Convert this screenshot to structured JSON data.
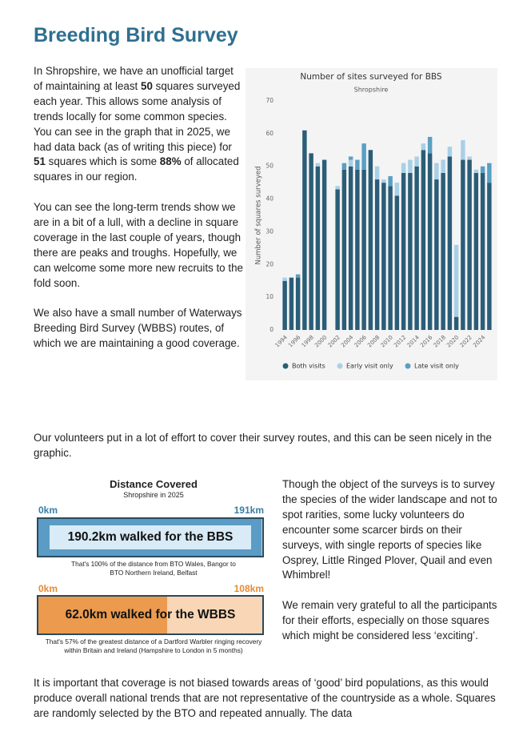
{
  "header": {
    "title": "Breeding Bird Survey"
  },
  "intro": {
    "paragraphs": [
      [
        "In Shropshire, we have an unofficial target of maintaining at least ",
        "50",
        " squares surveyed each year. This allows some analysis of trends locally for some common species."
      ],
      [
        "You can see in the graph that in 2025, we had data back (as of writing this piece) for ",
        "51",
        " squares which is some ",
        "88%",
        " of allocated squares in our region."
      ],
      [
        "You can see the long-term trends show we are in a bit of a lull, with a decline in square coverage in the last couple of years, though there are peaks and troughs. Hopefully, we can welcome some more new recruits to the fold soon."
      ],
      [
        "We also have a small number of Waterways Breeding Bird Survey (WBBS) routes, of which we are maintaining a good coverage."
      ]
    ]
  },
  "chart_data": {
    "type": "stacked_bar",
    "title": "Number of sites surveyed for BBS",
    "subtitle": "Shropshire",
    "y_label": "Number of squares surveyed",
    "categories": [
      "1994",
      null,
      "1996",
      null,
      "1998",
      null,
      "2000",
      null,
      "2002",
      null,
      "2004",
      null,
      "2006",
      null,
      "2008",
      null,
      "2010",
      null,
      "2012",
      null,
      "2014",
      null,
      "2016",
      null,
      "2018",
      null,
      "2020",
      null,
      "2022",
      null,
      "2024",
      null
    ],
    "series": [
      {
        "name": "Both visits",
        "color": "#2b5d78",
        "values": [
          15,
          16,
          16,
          61,
          54,
          50,
          52,
          null,
          43,
          49,
          50,
          49,
          49,
          55,
          46,
          45,
          44,
          41,
          48,
          48,
          50,
          55,
          54,
          46,
          48,
          53,
          4,
          52,
          52,
          48,
          48,
          45
        ]
      },
      {
        "name": "Early visit only",
        "color": "#a8d0e6",
        "values": [
          1,
          0,
          0,
          0,
          0,
          1,
          0,
          null,
          1,
          0,
          2,
          0,
          0,
          0,
          4,
          1,
          0,
          4,
          3,
          4,
          3,
          2,
          0,
          5,
          4,
          3,
          22,
          6,
          1,
          1,
          0,
          0
        ]
      },
      {
        "name": "Late visit only",
        "color": "#5a9fc4",
        "values": [
          0,
          0,
          1,
          0,
          0,
          0,
          0,
          null,
          0,
          2,
          1,
          3,
          8,
          0,
          0,
          0,
          3,
          0,
          0,
          0,
          0,
          0,
          5,
          0,
          0,
          0,
          0,
          0,
          0,
          0,
          2,
          6
        ]
      }
    ],
    "ylim": [
      0,
      70
    ],
    "yticks": [
      0,
      10,
      20,
      30,
      40,
      50,
      60,
      70
    ],
    "grid": false,
    "legend": "bottom"
  },
  "volunteers": "Our volunteers put in a lot of effort to cover their survey routes, and this can be seen nicely in the graphic.",
  "infographic": {
    "title": "Distance Covered",
    "subtitle": "Shropshire in 2025",
    "bars": [
      {
        "start": {
          "value": 0,
          "label": "0km"
        },
        "end": {
          "value": 191,
          "label": "191km"
        },
        "walked": {
          "value": 190.2,
          "label": "190.2km walked for the BBS"
        },
        "caption": "That's 100% of the distance from BTO Wales, Bangor to BTO Northern Ireland, Belfast"
      },
      {
        "start": {
          "value": 0,
          "label": "0km"
        },
        "end": {
          "value": 108,
          "label": "108km"
        },
        "walked": {
          "value": 62.0,
          "label": "62.0km walked for the WBBS"
        },
        "caption": "That's 57% of the greatest distance of a Dartford Warbler ringing recovery within Britain and Ireland (Hampshire to London in 5 months)"
      }
    ]
  },
  "rarities": {
    "paragraphs": [
      "Though the object of the surveys is to survey the species of the wider landscape and not to spot rarities, some lucky volunteers do encounter some scarcer birds on their surveys, with single reports of species like Osprey, Little Ringed Plover, Quail and even Whimbrel!",
      "We remain very grateful to all the participants for their efforts, especially on those squares which might be considered less ‘exciting’."
    ]
  },
  "footer": "It is important that coverage is not biased towards areas of ‘good’ bird populations, as this would produce overall national trends that are not representative of the countryside as a whole. Squares are randomly selected by the BTO and repeated annually. The data"
}
